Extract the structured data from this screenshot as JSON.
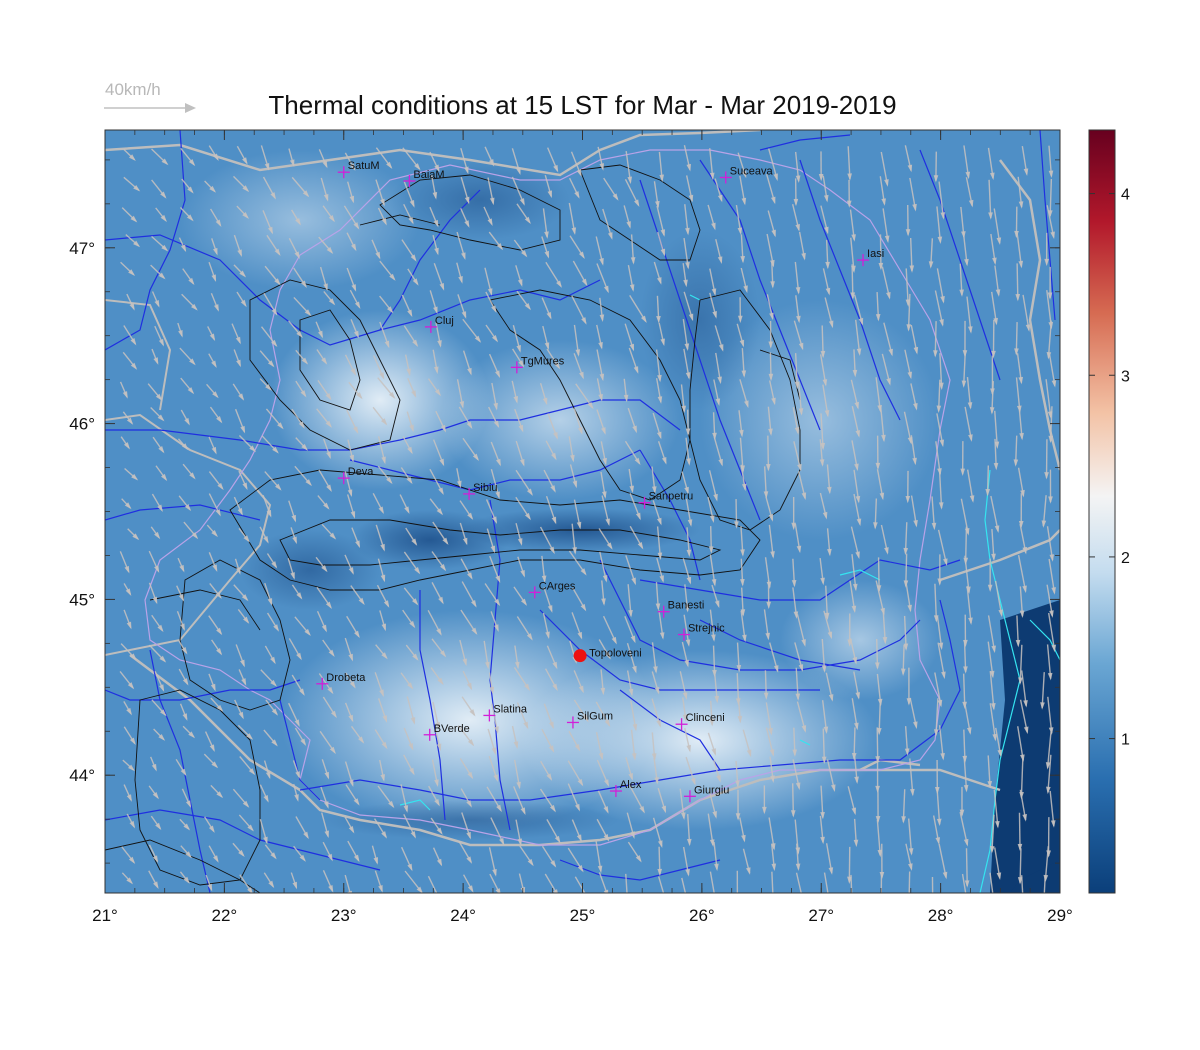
{
  "title": "Thermal conditions at 15 LST for Mar - Mar  2019-2019",
  "wind_legend": "40km/h",
  "axes": {
    "x_ticks": [
      "21°",
      "22°",
      "23°",
      "24°",
      "25°",
      "26°",
      "27°",
      "28°",
      "29°"
    ],
    "y_ticks": [
      "44°",
      "45°",
      "46°",
      "47°"
    ]
  },
  "colorbar": {
    "ticks": [
      "1",
      "2",
      "3",
      "4"
    ],
    "colors": [
      "#0b3f7a",
      "#2a6fb0",
      "#6aa6d3",
      "#c4dcef",
      "#f4f4f4",
      "#f3c2a5",
      "#d66b52",
      "#b2182b",
      "#67001f"
    ]
  },
  "stations": [
    {
      "name": "SatuM",
      "lon": 23.0,
      "lat": 47.43
    },
    {
      "name": "BaiaM",
      "lon": 23.55,
      "lat": 47.38
    },
    {
      "name": "Suceava",
      "lon": 26.2,
      "lat": 47.4
    },
    {
      "name": "Iasi",
      "lon": 27.35,
      "lat": 46.93
    },
    {
      "name": "Cluj",
      "lon": 23.73,
      "lat": 46.55
    },
    {
      "name": "TgMures",
      "lon": 24.45,
      "lat": 46.32
    },
    {
      "name": "Deva",
      "lon": 23.0,
      "lat": 45.69
    },
    {
      "name": "Sibiu",
      "lon": 24.05,
      "lat": 45.6
    },
    {
      "name": "Sanpetru",
      "lon": 25.52,
      "lat": 45.55
    },
    {
      "name": "CArges",
      "lon": 24.6,
      "lat": 45.04
    },
    {
      "name": "Banesti",
      "lon": 25.68,
      "lat": 44.93
    },
    {
      "name": "Strejnic",
      "lon": 25.85,
      "lat": 44.8
    },
    {
      "name": "Drobeta",
      "lon": 22.82,
      "lat": 44.52
    },
    {
      "name": "Slatina",
      "lon": 24.22,
      "lat": 44.34
    },
    {
      "name": "SilGum",
      "lon": 24.92,
      "lat": 44.3
    },
    {
      "name": "Clinceni",
      "lon": 25.83,
      "lat": 44.29
    },
    {
      "name": "BVerde",
      "lon": 23.72,
      "lat": 44.23
    },
    {
      "name": "Alex",
      "lon": 25.28,
      "lat": 43.91
    },
    {
      "name": "Giurgiu",
      "lon": 25.9,
      "lat": 43.88
    }
  ],
  "highlight": {
    "name": "Topoloveni",
    "lon": 24.98,
    "lat": 44.68
  },
  "extent": {
    "lon": [
      21,
      29
    ],
    "lat": [
      43.33,
      47.67
    ]
  }
}
